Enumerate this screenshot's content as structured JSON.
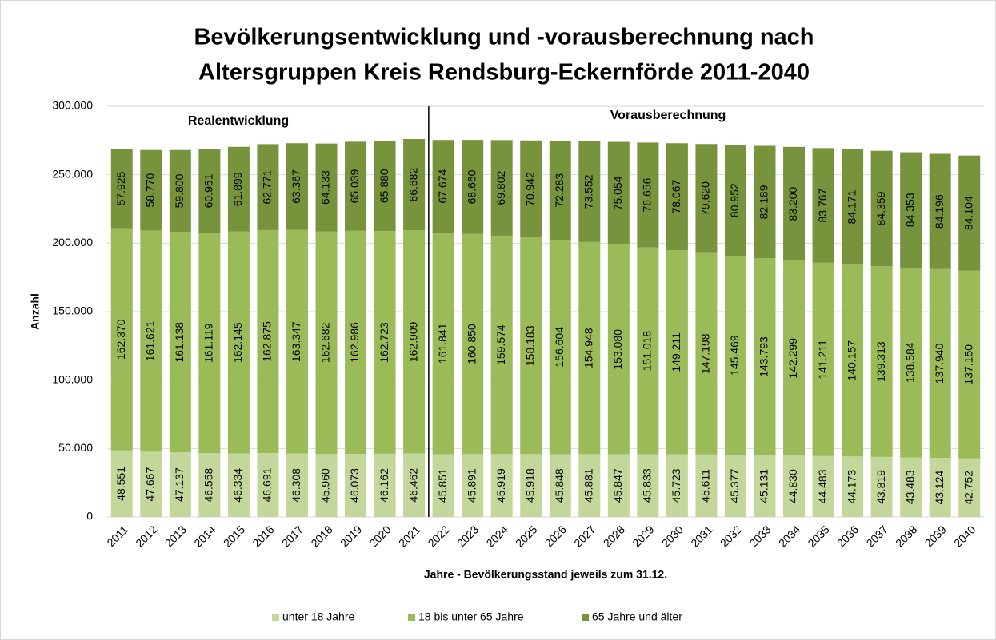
{
  "chart_data": {
    "type": "stacked_bar",
    "title": "Bevölkerungsentwicklung und -vorausberechnung nach",
    "subtitle": "Altersgruppen Kreis Rendsburg-Eckernförde 2011-2040",
    "y_label": "Anzahl",
    "x_label": "Jahre - Bevölkerungsstand jeweils zum 31.12.",
    "annotations": [
      "Realentwicklung",
      "Vorausberechnung"
    ],
    "categories": [
      "2011",
      "2012",
      "2013",
      "2014",
      "2015",
      "2016",
      "2017",
      "2018",
      "2019",
      "2020",
      "2021",
      "2022",
      "2023",
      "2024",
      "2025",
      "2026",
      "2027",
      "2028",
      "2029",
      "2030",
      "2031",
      "2032",
      "2033",
      "2034",
      "2035",
      "2036",
      "2037",
      "2038",
      "2039",
      "2040"
    ],
    "series": [
      {
        "name": "unter 18 Jahre",
        "color": "#c4d79b",
        "values": [
          48551,
          47667,
          47137,
          46558,
          46334,
          46691,
          46308,
          45960,
          46073,
          46162,
          46462,
          45851,
          45891,
          45919,
          45918,
          45848,
          45881,
          45847,
          45833,
          45723,
          45611,
          45377,
          45131,
          44830,
          44483,
          44173,
          43819,
          43483,
          43124,
          42752
        ],
        "value_labels": [
          "48.551",
          "47.667",
          "47.137",
          "46.558",
          "46.334",
          "46.691",
          "46.308",
          "45.960",
          "46.073",
          "46.162",
          "46.462",
          "45.851",
          "45.891",
          "45.919",
          "45.918",
          "45.848",
          "45.881",
          "45.847",
          "45.833",
          "45.723",
          "45.611",
          "45.377",
          "45.131",
          "44.830",
          "44.483",
          "44.173",
          "43.819",
          "43.483",
          "43.124",
          "42.752"
        ]
      },
      {
        "name": "18 bis unter 65 Jahre",
        "color": "#9bbb59",
        "values": [
          162370,
          161621,
          161138,
          161119,
          162145,
          162875,
          163347,
          162682,
          162986,
          162723,
          162909,
          161841,
          160850,
          159574,
          158183,
          156604,
          154948,
          153080,
          151018,
          149211,
          147198,
          145469,
          143793,
          142299,
          141211,
          140157,
          139313,
          138584,
          137940,
          137150
        ],
        "value_labels": [
          "162.370",
          "161.621",
          "161.138",
          "161.119",
          "162.145",
          "162.875",
          "163.347",
          "162.682",
          "162.986",
          "162.723",
          "162.909",
          "161.841",
          "160.850",
          "159.574",
          "158.183",
          "156.604",
          "154.948",
          "153.080",
          "151.018",
          "149.211",
          "147.198",
          "145.469",
          "143.793",
          "142.299",
          "141.211",
          "140.157",
          "139.313",
          "138.584",
          "137.940",
          "137.150"
        ]
      },
      {
        "name": "65 Jahre und älter",
        "color": "#77933c",
        "values": [
          57925,
          58770,
          59800,
          60951,
          61899,
          62771,
          63367,
          64133,
          65039,
          65880,
          66682,
          67674,
          68660,
          69802,
          70942,
          72283,
          73552,
          75054,
          76656,
          78067,
          79620,
          80952,
          82189,
          83200,
          83767,
          84171,
          84359,
          84353,
          84196,
          84104
        ],
        "value_labels": [
          "57.925",
          "58.770",
          "59.800",
          "60.951",
          "61.899",
          "62.771",
          "63.367",
          "64.133",
          "65.039",
          "65.880",
          "66.682",
          "67.674",
          "68.660",
          "69.802",
          "70.942",
          "72.283",
          "73.552",
          "75.054",
          "76.656",
          "78.067",
          "79.620",
          "80.952",
          "82.189",
          "83.200",
          "83.767",
          "84.171",
          "84.359",
          "84.353",
          "84.196",
          "84.104"
        ]
      }
    ],
    "ylim": [
      0,
      300000
    ],
    "yticks": [
      0,
      {
        "value": 50000,
        "label": "50.000"
      },
      {
        "value": 100000,
        "label": "100.000"
      },
      {
        "value": 150000,
        "label": "150.000"
      },
      {
        "value": 200000,
        "label": "200.000"
      },
      {
        "value": 250000,
        "label": "250.000"
      },
      {
        "value": 300000,
        "label": "300.000"
      }
    ],
    "grid": true,
    "legend": "bottom"
  }
}
